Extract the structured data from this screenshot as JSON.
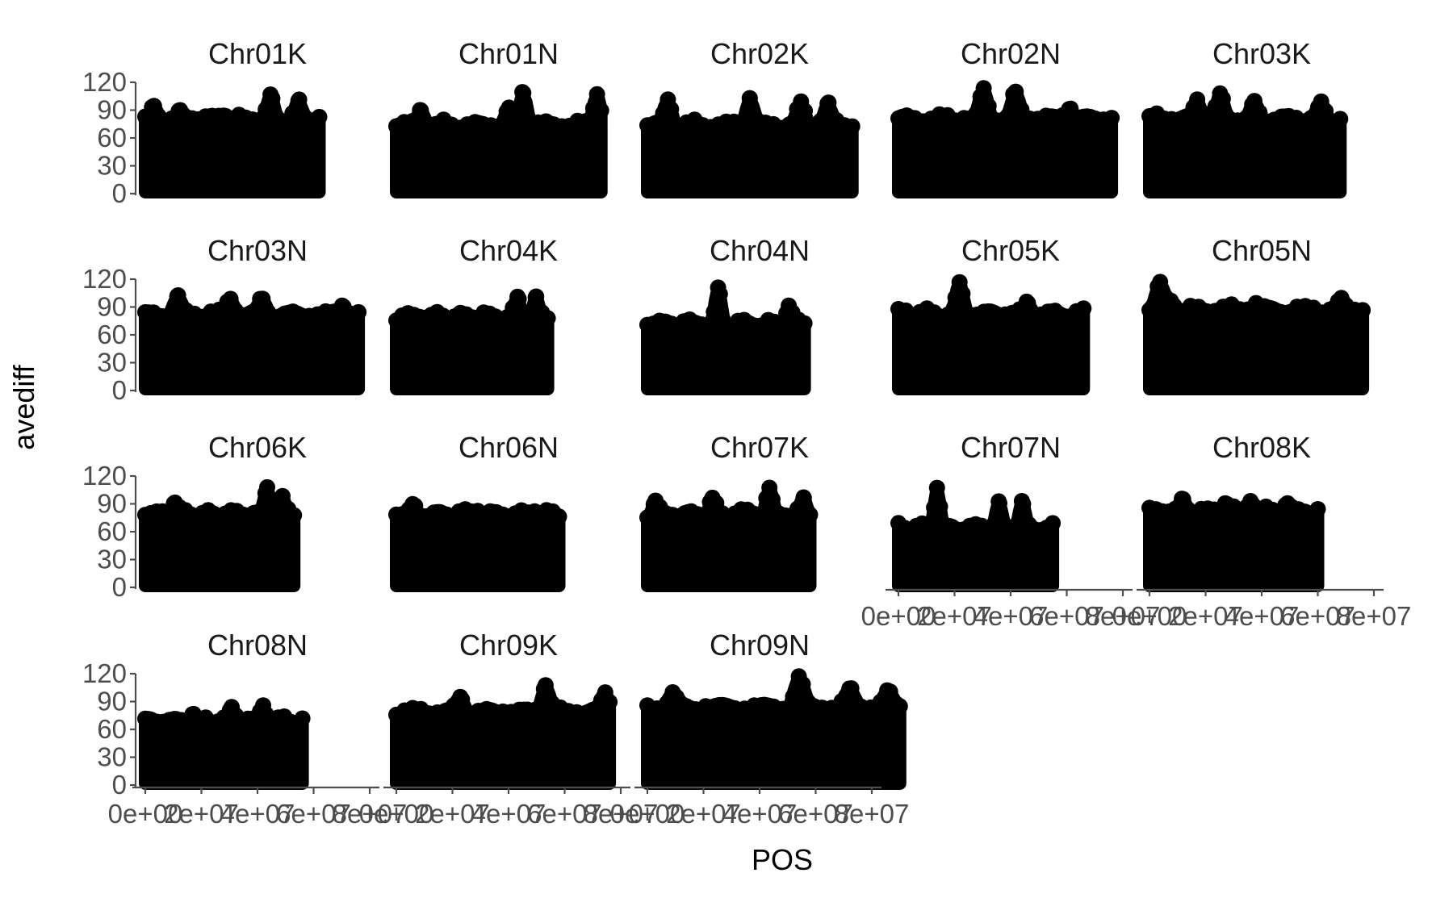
{
  "chart_data": {
    "type": "scatter",
    "layout": "facet_wrap",
    "xlabel": "POS",
    "ylabel": "avediff",
    "ylim": [
      0,
      120
    ],
    "y_ticks": [
      "0",
      "30",
      "60",
      "90",
      "120"
    ],
    "x_ticks": [
      "0e+00",
      "2e+07",
      "4e+07",
      "6e+07",
      "8e+07"
    ],
    "xlim": [
      0,
      80000000
    ],
    "grid": false,
    "point_color": "#000000",
    "panels": [
      {
        "label": "Chr01K",
        "x_max": 62000000.0,
        "base": 82,
        "bumps": [
          [
            0.05,
            10
          ],
          [
            0.2,
            5
          ],
          [
            0.45,
            5
          ],
          [
            0.72,
            22
          ],
          [
            0.88,
            15
          ]
        ]
      },
      {
        "label": "Chr01N",
        "x_max": 73000000.0,
        "base": 75,
        "bumps": [
          [
            0.12,
            17
          ],
          [
            0.55,
            15
          ],
          [
            0.62,
            35
          ],
          [
            0.98,
            35
          ]
        ]
      },
      {
        "label": "Chr02K",
        "x_max": 73000000.0,
        "base": 75,
        "bumps": [
          [
            0.1,
            27
          ],
          [
            0.5,
            30
          ],
          [
            0.75,
            22
          ],
          [
            0.88,
            20
          ]
        ]
      },
      {
        "label": "Chr02N",
        "x_max": 76000000.0,
        "base": 82,
        "bumps": [
          [
            0.4,
            30
          ],
          [
            0.55,
            25
          ],
          [
            0.8,
            12
          ]
        ]
      },
      {
        "label": "Chr03K",
        "x_max": 68000000.0,
        "base": 82,
        "bumps": [
          [
            0.25,
            20
          ],
          [
            0.37,
            23
          ],
          [
            0.55,
            15
          ],
          [
            0.9,
            15
          ]
        ]
      },
      {
        "label": "Chr03N",
        "x_max": 76000000.0,
        "base": 83,
        "bumps": [
          [
            0.15,
            17
          ],
          [
            0.4,
            17
          ],
          [
            0.55,
            15
          ],
          [
            0.93,
            10
          ]
        ]
      },
      {
        "label": "Chr04K",
        "x_max": 54000000.0,
        "base": 80,
        "bumps": [
          [
            0.8,
            20
          ],
          [
            0.92,
            18
          ]
        ]
      },
      {
        "label": "Chr04N",
        "x_max": 56000000.0,
        "base": 73,
        "bumps": [
          [
            0.45,
            35
          ],
          [
            0.9,
            20
          ]
        ]
      },
      {
        "label": "Chr05K",
        "x_max": 66000000.0,
        "base": 84,
        "bumps": [
          [
            0.04,
            4
          ],
          [
            0.33,
            30
          ],
          [
            0.7,
            10
          ]
        ]
      },
      {
        "label": "Chr05N",
        "x_max": 76000000.0,
        "base": 88,
        "bumps": [
          [
            0.05,
            26
          ],
          [
            0.1,
            10
          ],
          [
            0.5,
            6
          ],
          [
            0.9,
            9
          ]
        ]
      },
      {
        "label": "Chr06K",
        "x_max": 53000000.0,
        "base": 80,
        "bumps": [
          [
            0.2,
            13
          ],
          [
            0.82,
            29
          ],
          [
            0.92,
            15
          ]
        ]
      },
      {
        "label": "Chr06N",
        "x_max": 58000000.0,
        "base": 80,
        "bumps": [
          [
            0.1,
            7
          ],
          [
            0.5,
            5
          ],
          [
            0.85,
            5
          ]
        ]
      },
      {
        "label": "Chr07K",
        "x_max": 58000000.0,
        "base": 80,
        "bumps": [
          [
            0.05,
            13
          ],
          [
            0.4,
            15
          ],
          [
            0.75,
            25
          ],
          [
            0.96,
            15
          ]
        ]
      },
      {
        "label": "Chr07N",
        "x_max": 55000000.0,
        "base": 65,
        "bumps": [
          [
            0.25,
            45
          ],
          [
            0.65,
            25
          ],
          [
            0.8,
            27
          ]
        ]
      },
      {
        "label": "Chr08K",
        "x_max": 60000000.0,
        "base": 83,
        "bumps": [
          [
            0.2,
            10
          ],
          [
            0.45,
            10
          ],
          [
            0.6,
            13
          ],
          [
            0.82,
            7
          ]
        ]
      },
      {
        "label": "Chr08N",
        "x_max": 56000000.0,
        "base": 70,
        "bumps": [
          [
            0.3,
            8
          ],
          [
            0.55,
            12
          ],
          [
            0.75,
            17
          ]
        ]
      },
      {
        "label": "Chr09K",
        "x_max": 76000000.0,
        "base": 80,
        "bumps": [
          [
            0.3,
            15
          ],
          [
            0.7,
            30
          ],
          [
            0.98,
            20
          ]
        ]
      },
      {
        "label": "Chr09N",
        "x_max": 90000000.0,
        "base": 85,
        "bumps": [
          [
            0.1,
            13
          ],
          [
            0.6,
            31
          ],
          [
            0.8,
            16
          ],
          [
            0.95,
            15
          ]
        ]
      }
    ]
  }
}
